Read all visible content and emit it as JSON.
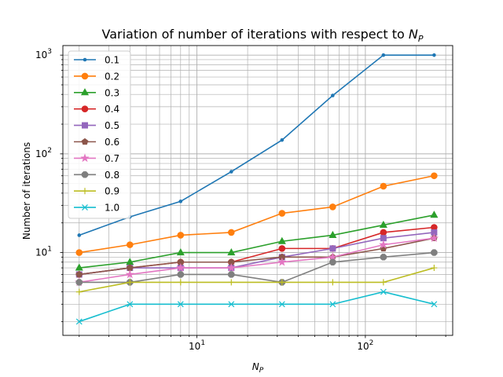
{
  "chart_data": {
    "type": "line",
    "title": "Variation of number of iterations with respect to N_P",
    "title_text": "Variation of number of iterations with respect to ",
    "title_symbol": "N",
    "title_subscript": "P",
    "xlabel_symbol": "N",
    "xlabel_subscript": "P",
    "ylabel": "Number of iterations",
    "xscale": "log",
    "yscale": "log",
    "xlim": [
      1.6,
      330
    ],
    "ylim": [
      1.45,
      1250
    ],
    "grid": "both (major and minor)",
    "legend_placement": "top-left",
    "x_ticks": [
      {
        "value": 10,
        "base": "10",
        "exp": "1"
      },
      {
        "value": 100,
        "base": "10",
        "exp": "2"
      }
    ],
    "y_ticks": [
      {
        "value": 10,
        "base": "10",
        "exp": "1"
      },
      {
        "value": 100,
        "base": "10",
        "exp": "2"
      },
      {
        "value": 1000,
        "base": "10",
        "exp": "3"
      }
    ],
    "x": [
      2,
      4,
      8,
      16,
      32,
      64,
      128,
      256
    ],
    "series": [
      {
        "name": "0.1",
        "color": "#1f77b4",
        "marker": "point",
        "values": [
          15,
          23,
          33,
          66,
          138,
          390,
          1000,
          1000
        ]
      },
      {
        "name": "0.2",
        "color": "#ff7f0e",
        "marker": "circle",
        "values": [
          10,
          12,
          15,
          16,
          25,
          29,
          47,
          60
        ]
      },
      {
        "name": "0.3",
        "color": "#2ca02c",
        "marker": "triangle",
        "values": [
          7,
          8,
          10,
          10,
          13,
          15,
          19,
          24
        ]
      },
      {
        "name": "0.4",
        "color": "#d62728",
        "marker": "circle",
        "values": [
          6,
          7,
          8,
          8,
          11,
          11,
          16,
          18
        ]
      },
      {
        "name": "0.5",
        "color": "#9467bd",
        "marker": "square",
        "values": [
          6,
          7,
          7,
          7,
          9,
          11,
          14,
          16
        ]
      },
      {
        "name": "0.6",
        "color": "#8c564b",
        "marker": "pentagon",
        "values": [
          6,
          7,
          8,
          8,
          9,
          9,
          11,
          14
        ]
      },
      {
        "name": "0.7",
        "color": "#e377c2",
        "marker": "star",
        "values": [
          5,
          6,
          7,
          7,
          8,
          9,
          12,
          14
        ]
      },
      {
        "name": "0.8",
        "color": "#7f7f7f",
        "marker": "octagon",
        "values": [
          5,
          5,
          6,
          6,
          5,
          8,
          9,
          10
        ]
      },
      {
        "name": "0.9",
        "color": "#bcbd22",
        "marker": "plus",
        "values": [
          4,
          5,
          5,
          5,
          5,
          5,
          5,
          7
        ]
      },
      {
        "name": "1.0",
        "color": "#17becf",
        "marker": "x",
        "values": [
          2,
          3,
          3,
          3,
          3,
          3,
          4,
          3
        ]
      }
    ]
  }
}
